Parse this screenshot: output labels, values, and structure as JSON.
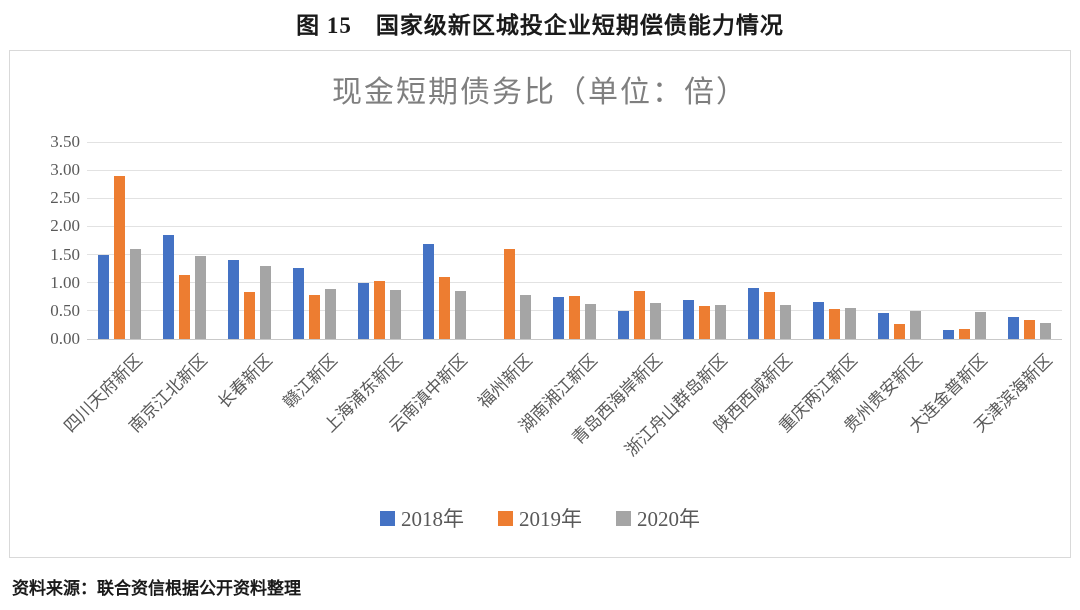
{
  "page": {
    "figure_title": "图 15　国家级新区城投企业短期偿债能力情况",
    "source_note": "资料来源：联合资信根据公开资料整理"
  },
  "chart_data": {
    "type": "bar",
    "title": "现金短期债务比（单位：倍）",
    "categories": [
      "四川天府新区",
      "南京江北新区",
      "长春新区",
      "赣江新区",
      "上海浦东新区",
      "云南滇中新区",
      "福州新区",
      "湖南湘江新区",
      "青岛西海岸新区",
      "浙江舟山群岛新区",
      "陕西西咸新区",
      "重庆两江新区",
      "贵州贵安新区",
      "大连金普新区",
      "天津滨海新区"
    ],
    "series": [
      {
        "name": "2018年",
        "color": "#4472C4",
        "values": [
          1.5,
          1.85,
          1.4,
          1.27,
          1.0,
          1.68,
          null,
          0.75,
          0.5,
          0.7,
          0.9,
          0.65,
          0.46,
          0.16,
          0.4
        ]
      },
      {
        "name": "2019年",
        "color": "#ED7D31",
        "values": [
          2.9,
          1.13,
          0.83,
          0.78,
          1.03,
          1.1,
          1.6,
          0.76,
          0.85,
          0.58,
          0.83,
          0.54,
          0.27,
          0.18,
          0.33
        ]
      },
      {
        "name": "2020年",
        "color": "#A5A5A5",
        "values": [
          1.6,
          1.47,
          1.3,
          0.88,
          0.87,
          0.85,
          0.78,
          0.63,
          0.64,
          0.6,
          0.6,
          0.55,
          0.5,
          0.48,
          0.28
        ]
      }
    ],
    "ylim": [
      0,
      3.5
    ],
    "ytick_step": 0.5,
    "ytick_labels": [
      "0.00",
      "0.50",
      "1.00",
      "1.50",
      "2.00",
      "2.50",
      "3.00",
      "3.50"
    ],
    "grid": true,
    "legend_position": "bottom"
  }
}
